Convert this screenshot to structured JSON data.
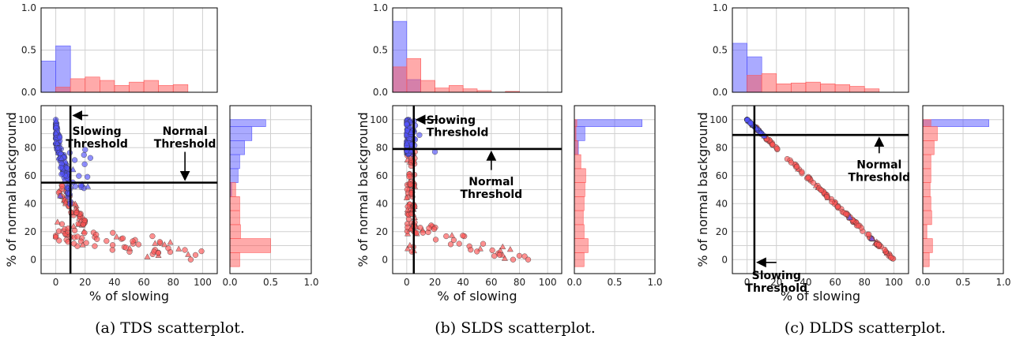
{
  "chart_data": [
    {
      "type": "scatter",
      "caption": "(a) TDS scatterplot.",
      "xlabel": "% of slowing",
      "ylabel": "% of normal background",
      "xlim": [
        -10,
        110
      ],
      "ylim": [
        -10,
        110
      ],
      "xticks": [
        0,
        20,
        40,
        60,
        80,
        100
      ],
      "yticks": [
        0,
        10,
        20,
        30,
        40,
        50,
        60,
        70,
        80,
        90,
        100
      ],
      "grid": true,
      "thresholds": {
        "slowing": 10,
        "normal": 55
      },
      "annotations": {
        "slowing": [
          "Slowing",
          "Threshold"
        ],
        "normal": [
          "Normal",
          "Threshold"
        ]
      },
      "colors": {
        "blue": "#5555ff",
        "red": "#ff5555"
      },
      "top_hist": {
        "ylim": [
          0,
          1.0
        ],
        "yticks": [
          "0.0",
          "0.5",
          "1.0"
        ],
        "edges": [
          -10,
          0,
          10,
          20,
          30,
          40,
          50,
          60,
          70,
          80,
          90,
          100
        ],
        "blue": [
          0.37,
          0.55,
          0,
          0,
          0,
          0,
          0,
          0,
          0,
          0,
          0
        ],
        "red": [
          0,
          0.06,
          0.16,
          0.18,
          0.14,
          0.08,
          0.12,
          0.14,
          0.08,
          0.09,
          0
        ]
      },
      "right_hist": {
        "xlim": [
          0,
          1.0
        ],
        "xticks": [
          "0.0",
          "0.5",
          "1.0"
        ],
        "edges": [
          -5,
          5,
          15,
          25,
          35,
          45,
          55,
          65,
          75,
          85,
          95,
          100
        ],
        "blue": [
          0,
          0,
          0,
          0,
          0,
          0.02,
          0.1,
          0.12,
          0.18,
          0.27,
          0.44
        ],
        "red": [
          0.12,
          0.5,
          0.13,
          0.12,
          0.12,
          0.07,
          0,
          0,
          0,
          0,
          0
        ]
      }
    },
    {
      "type": "scatter",
      "caption": "(b) SLDS scatterplot.",
      "xlabel": "% of slowing",
      "ylabel": "% of normal background",
      "xlim": [
        -10,
        110
      ],
      "ylim": [
        -10,
        110
      ],
      "xticks": [
        0,
        20,
        40,
        60,
        80,
        100
      ],
      "yticks": [
        0,
        10,
        20,
        30,
        40,
        50,
        60,
        70,
        80,
        90,
        100
      ],
      "grid": true,
      "thresholds": {
        "slowing": 5,
        "normal": 79
      },
      "annotations": {
        "slowing": [
          "Slowing",
          "Threshold"
        ],
        "normal": [
          "Normal",
          "Threshold"
        ]
      },
      "colors": {
        "blue": "#5555ff",
        "red": "#ff5555"
      },
      "top_hist": {
        "ylim": [
          0,
          1.0
        ],
        "yticks": [
          "0.0",
          "0.5",
          "1.0"
        ],
        "edges": [
          -10,
          0,
          10,
          20,
          30,
          40,
          50,
          60,
          70,
          80,
          90,
          100
        ],
        "blue": [
          0.84,
          0.15,
          0,
          0,
          0,
          0,
          0,
          0,
          0,
          0,
          0
        ],
        "red": [
          0.3,
          0.4,
          0.14,
          0.05,
          0.08,
          0.04,
          0.02,
          0,
          0.01,
          0,
          0
        ]
      },
      "right_hist": {
        "xlim": [
          0,
          1.0
        ],
        "xticks": [
          "0.0",
          "0.5",
          "1.0"
        ],
        "edges": [
          -5,
          5,
          15,
          25,
          35,
          45,
          55,
          65,
          75,
          85,
          95,
          100
        ],
        "blue": [
          0,
          0,
          0,
          0,
          0,
          0,
          0,
          0,
          0.05,
          0.13,
          0.84
        ],
        "red": [
          0.12,
          0.17,
          0.12,
          0.11,
          0.12,
          0.13,
          0.14,
          0.08,
          0.04,
          0.02,
          0.03
        ]
      }
    },
    {
      "type": "scatter",
      "caption": "(c) DLDS scatterplot.",
      "xlabel": "% of slowing",
      "ylabel": "% of normal background",
      "xlim": [
        -10,
        110
      ],
      "ylim": [
        -10,
        110
      ],
      "xticks": [
        0,
        20,
        40,
        60,
        80,
        100
      ],
      "yticks": [
        0,
        10,
        20,
        30,
        40,
        50,
        60,
        70,
        80,
        90,
        100
      ],
      "grid": true,
      "thresholds": {
        "slowing": 5,
        "normal": 89
      },
      "annotations": {
        "slowing": [
          "Slowing",
          "Threshold"
        ],
        "normal": [
          "Normal",
          "Threshold"
        ]
      },
      "colors": {
        "blue": "#5555ff",
        "red": "#ff5555"
      },
      "top_hist": {
        "ylim": [
          0,
          1.0
        ],
        "yticks": [
          "0.0",
          "0.5",
          "1.0"
        ],
        "edges": [
          -10,
          0,
          10,
          20,
          30,
          40,
          50,
          60,
          70,
          80,
          90,
          100
        ],
        "blue": [
          0.58,
          0.42,
          0,
          0,
          0,
          0,
          0,
          0,
          0,
          0,
          0
        ],
        "red": [
          0,
          0.2,
          0.22,
          0.1,
          0.11,
          0.12,
          0.1,
          0.09,
          0.07,
          0.04,
          0
        ]
      },
      "right_hist": {
        "xlim": [
          0,
          1.0
        ],
        "xticks": [
          "0.0",
          "0.5",
          "1.0"
        ],
        "edges": [
          -5,
          5,
          15,
          25,
          35,
          45,
          55,
          65,
          75,
          85,
          95,
          100
        ],
        "blue": [
          0,
          0,
          0,
          0,
          0,
          0,
          0,
          0,
          0,
          0,
          0.82
        ],
        "red": [
          0.08,
          0.12,
          0.05,
          0.11,
          0.1,
          0.09,
          0.1,
          0.1,
          0.14,
          0.18,
          0.1
        ]
      }
    }
  ]
}
